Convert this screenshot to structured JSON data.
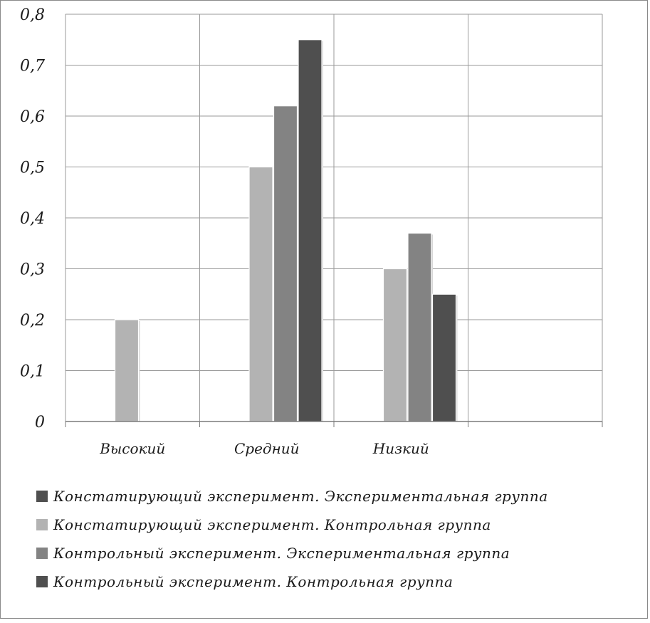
{
  "chart_data": {
    "type": "bar",
    "categories": [
      "Высокий",
      "Средний",
      "Низкий",
      ""
    ],
    "series": [
      {
        "name": "Констатирующий эксперимент.  Экспериментальная группа",
        "values": [
          0,
          0,
          0,
          0
        ],
        "color": "#4f4f4f"
      },
      {
        "name": "Констатирующий эксперимент. Контрольная группа",
        "values": [
          0.2,
          0.5,
          0.3,
          0
        ],
        "color": "#b3b3b3"
      },
      {
        "name": "Контрольный эксперимент. Экспериментальная группа",
        "values": [
          0,
          0.62,
          0.37,
          0
        ],
        "color": "#838383"
      },
      {
        "name": "Контрольный эксперимент. Контрольная группа",
        "values": [
          0,
          0.75,
          0.25,
          0
        ],
        "color": "#4f4f4f"
      }
    ],
    "ylim": [
      0,
      0.8
    ],
    "yticks": [
      "0",
      "0,1",
      "0,2",
      "0,3",
      "0,4",
      "0,5",
      "0,6",
      "0,7",
      "0,8"
    ],
    "grid": true,
    "legend_position": "bottom"
  }
}
